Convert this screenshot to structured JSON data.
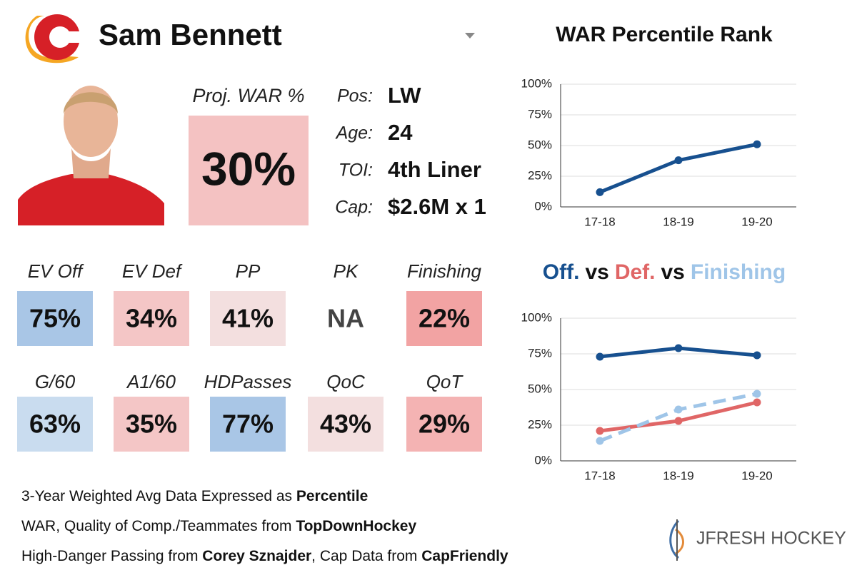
{
  "header": {
    "name": "Sam Bennett"
  },
  "proj_war": {
    "label": "Proj. WAR %",
    "value": "30%",
    "color": "#f4c2c2"
  },
  "info": [
    {
      "label": "Pos:",
      "value": "LW"
    },
    {
      "label": "Age:",
      "value": "24"
    },
    {
      "label": "TOI:",
      "value": "4th Liner"
    },
    {
      "label": "Cap:",
      "value": "$2.6M x 1"
    }
  ],
  "tiles": [
    [
      {
        "label": "EV Off",
        "value": "75%",
        "color": "#a9c6e6"
      },
      {
        "label": "EV Def",
        "value": "34%",
        "color": "#f4c6c6"
      },
      {
        "label": "PP",
        "value": "41%",
        "color": "#f3dfdf"
      },
      {
        "label": "PK",
        "value": "NA",
        "color": null
      },
      {
        "label": "Finishing",
        "value": "22%",
        "color": "#f2a3a3"
      }
    ],
    [
      {
        "label": "G/60",
        "value": "63%",
        "color": "#c9dcef"
      },
      {
        "label": "A1/60",
        "value": "35%",
        "color": "#f4c6c6"
      },
      {
        "label": "HDPasses",
        "value": "77%",
        "color": "#a9c6e6"
      },
      {
        "label": "QoC",
        "value": "43%",
        "color": "#f3dfdf"
      },
      {
        "label": "QoT",
        "value": "29%",
        "color": "#f4b3b3"
      }
    ]
  ],
  "footer": [
    [
      {
        "text": "3-Year Weighted Avg Data Expressed as ",
        "bold": false
      },
      {
        "text": "Percentile",
        "bold": true
      }
    ],
    [
      {
        "text": "WAR, Quality of Comp./Teammates from ",
        "bold": false
      },
      {
        "text": "TopDownHockey",
        "bold": true
      }
    ],
    [
      {
        "text": "High-Danger Passing from ",
        "bold": false
      },
      {
        "text": "Corey Sznajder",
        "bold": true
      },
      {
        "text": ", Cap Data from ",
        "bold": false
      },
      {
        "text": "CapFriendly",
        "bold": true
      }
    ]
  ],
  "brand": "JFRESH HOCKEY",
  "chart_data": [
    {
      "type": "line",
      "title": "WAR Percentile Rank",
      "categories": [
        "17-18",
        "18-19",
        "19-20"
      ],
      "values": [
        12,
        38,
        51
      ],
      "color": "#17508f",
      "ylim": [
        0,
        100
      ],
      "yticks": [
        {
          "value": 0,
          "label": "0%"
        },
        {
          "value": 25,
          "label": "25%"
        },
        {
          "value": 50,
          "label": "50%"
        },
        {
          "value": 75,
          "label": "75%"
        },
        {
          "value": 100,
          "label": "100%"
        }
      ],
      "grid": true
    },
    {
      "type": "line",
      "title_connector": "vs",
      "categories": [
        "17-18",
        "18-19",
        "19-20"
      ],
      "series": [
        {
          "name": "Off.",
          "color": "#17508f",
          "values": [
            73,
            79,
            74
          ],
          "dashed": false
        },
        {
          "name": "Def.",
          "color": "#e06666",
          "values": [
            21,
            28,
            41
          ],
          "dashed": false
        },
        {
          "name": "Finishing",
          "color": "#9fc5e8",
          "values": [
            14,
            36,
            47
          ],
          "dashed": true
        }
      ],
      "ylim": [
        0,
        100
      ],
      "yticks": [
        {
          "value": 0,
          "label": "0%"
        },
        {
          "value": 25,
          "label": "25%"
        },
        {
          "value": 50,
          "label": "50%"
        },
        {
          "value": 75,
          "label": "75%"
        },
        {
          "value": 100,
          "label": "100%"
        }
      ],
      "grid": true
    }
  ]
}
